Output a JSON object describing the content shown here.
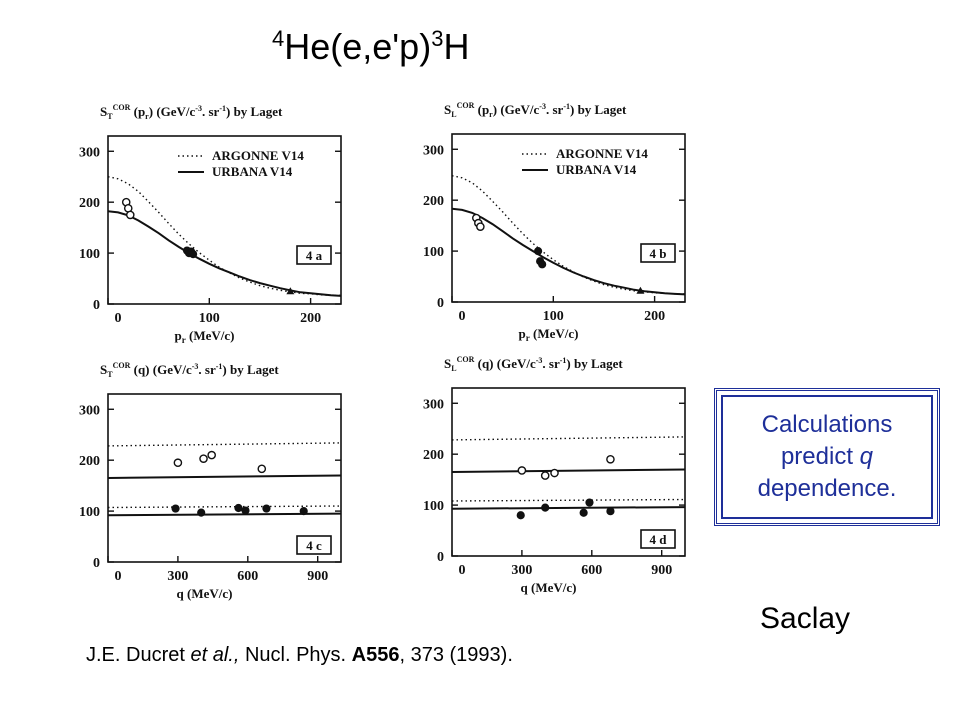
{
  "slide": {
    "title_iso_mass": "4",
    "title_reaction": "He(e,e'p)",
    "title_product_mass": "3",
    "title_product": "H",
    "note": [
      "Calculations",
      "predict ",
      "q",
      "dependence."
    ],
    "site": "Saclay",
    "reference": {
      "authors": "J.E. Ducret ",
      "etal": "et al.,",
      "journal": " Nucl. Phys. ",
      "volume": "A556",
      "rest": ", 373 (1993)."
    }
  },
  "colors": {
    "accent": "#1e2f99",
    "ink": "#111111"
  },
  "chart_data": [
    {
      "id": "4a",
      "type": "line",
      "ylabel_main": "S",
      "ylabel_sub": "T",
      "ylabel_sup": "COR",
      "ylabel_rest": " (p",
      "ylabel_var_sub": "r",
      "ylabel_tail": ") (GeV/c",
      "ylabel_exp1": "-3",
      "ylabel_mid": ". sr",
      "ylabel_exp2": "-1",
      "ylabel_end": ") by Laget",
      "xlabel": "p",
      "xlabel_sub": "r",
      "xlabel_unit": " (MeV/c)",
      "xlim": [
        0,
        230
      ],
      "ylim": [
        0,
        330
      ],
      "xticks": [
        0,
        100,
        200
      ],
      "yticks": [
        0,
        100,
        200,
        300
      ],
      "panel_tag": "4 a",
      "legend": [
        "ARGONNE V14",
        "URBANA V14"
      ],
      "series": [
        {
          "name": "ARGONNE V14",
          "style": "dotted",
          "x": [
            0,
            10,
            20,
            30,
            40,
            50,
            60,
            70,
            80,
            90,
            100,
            110,
            120,
            130,
            140,
            150,
            160,
            170,
            180,
            190,
            200,
            210,
            220,
            230
          ],
          "y": [
            250,
            246,
            236,
            221,
            201,
            180,
            158,
            137,
            118,
            101,
            86,
            72,
            61,
            51,
            43,
            36,
            31,
            27,
            24,
            21,
            20,
            18,
            17,
            17
          ]
        },
        {
          "name": "URBANA V14",
          "style": "solid",
          "x": [
            0,
            10,
            20,
            30,
            40,
            50,
            60,
            70,
            80,
            90,
            100,
            110,
            120,
            130,
            140,
            150,
            160,
            170,
            180,
            190,
            200,
            210,
            220,
            230
          ],
          "y": [
            182,
            180,
            174,
            164,
            152,
            139,
            125,
            112,
            100,
            89,
            79,
            70,
            62,
            54,
            47,
            41,
            36,
            31,
            27,
            23,
            21,
            19,
            17,
            16
          ]
        }
      ],
      "points_open": [
        [
          18,
          200
        ],
        [
          20,
          188
        ],
        [
          22,
          175
        ]
      ],
      "points_filled": [
        [
          78,
          105
        ],
        [
          80,
          100
        ],
        [
          82,
          103
        ],
        [
          84,
          98
        ]
      ],
      "points_triangle": [
        [
          180,
          25
        ]
      ]
    },
    {
      "id": "4b",
      "type": "line",
      "ylabel_main": "S",
      "ylabel_sub": "L",
      "ylabel_sup": "COR",
      "ylabel_rest": " (p",
      "ylabel_var_sub": "r",
      "ylabel_tail": ") (GeV/c",
      "ylabel_exp1": "-3",
      "ylabel_mid": ". sr",
      "ylabel_exp2": "-1",
      "ylabel_end": ") by Laget",
      "xlabel": "p",
      "xlabel_sub": "r",
      "xlabel_unit": " (MeV/c)",
      "xlim": [
        0,
        230
      ],
      "ylim": [
        0,
        330
      ],
      "xticks": [
        0,
        100,
        200
      ],
      "yticks": [
        0,
        100,
        200,
        300
      ],
      "panel_tag": "4 b",
      "legend": [
        "ARGONNE V14",
        "URBANA V14"
      ],
      "series": [
        {
          "name": "ARGONNE V14",
          "style": "dotted",
          "x": [
            0,
            10,
            20,
            30,
            40,
            50,
            60,
            70,
            80,
            90,
            100,
            110,
            120,
            130,
            140,
            150,
            160,
            170,
            180,
            190,
            200,
            210,
            220,
            230
          ],
          "y": [
            248,
            244,
            234,
            218,
            198,
            177,
            155,
            134,
            115,
            98,
            83,
            70,
            59,
            49,
            41,
            34,
            29,
            25,
            22,
            20,
            18,
            17,
            16,
            16
          ]
        },
        {
          "name": "URBANA V14",
          "style": "solid",
          "x": [
            0,
            10,
            20,
            30,
            40,
            50,
            60,
            70,
            80,
            90,
            100,
            110,
            120,
            130,
            140,
            150,
            160,
            170,
            180,
            190,
            200,
            210,
            220,
            230
          ],
          "y": [
            183,
            181,
            175,
            165,
            153,
            139,
            125,
            112,
            100,
            88,
            77,
            67,
            58,
            50,
            43,
            37,
            32,
            28,
            24,
            21,
            19,
            17,
            16,
            15
          ]
        }
      ],
      "points_open": [
        [
          24,
          165
        ],
        [
          26,
          155
        ],
        [
          28,
          148
        ]
      ],
      "points_filled": [
        [
          85,
          100
        ],
        [
          87,
          80
        ],
        [
          89,
          74
        ]
      ],
      "points_triangle": [
        [
          186,
          22
        ]
      ]
    },
    {
      "id": "4c",
      "type": "scatter",
      "ylabel_main": "S",
      "ylabel_sub": "T",
      "ylabel_sup": "COR",
      "ylabel_rest": " (q) (GeV/c",
      "ylabel_var_sub": "",
      "ylabel_tail": "",
      "ylabel_exp1": "-3",
      "ylabel_mid": ". sr",
      "ylabel_exp2": "-1",
      "ylabel_end": ") by Laget",
      "xlabel": "q",
      "xlabel_sub": "",
      "xlabel_unit": " (MeV/c)",
      "xlim": [
        0,
        1000
      ],
      "ylim": [
        0,
        330
      ],
      "xticks": [
        0,
        300,
        600,
        900
      ],
      "yticks": [
        0,
        100,
        200,
        300
      ],
      "panel_tag": "4 c",
      "legend": [],
      "series": [
        {
          "name": "ARGONNE V14",
          "style": "dotted",
          "x": [
            0,
            1000
          ],
          "y": [
            228,
            234
          ]
        },
        {
          "name": "ARGONNE V14",
          "style": "dotted",
          "x": [
            0,
            1000
          ],
          "y": [
            107,
            110
          ]
        },
        {
          "name": "URBANA V14",
          "style": "solid",
          "x": [
            0,
            1000
          ],
          "y": [
            165,
            170
          ]
        },
        {
          "name": "URBANA V14",
          "style": "solid",
          "x": [
            0,
            1000
          ],
          "y": [
            92,
            95
          ]
        }
      ],
      "points_open": [
        [
          300,
          195
        ],
        [
          410,
          203
        ],
        [
          445,
          210
        ],
        [
          660,
          183
        ]
      ],
      "points_filled": [
        [
          290,
          105
        ],
        [
          400,
          97
        ],
        [
          560,
          106
        ],
        [
          590,
          101
        ],
        [
          680,
          105
        ],
        [
          840,
          100
        ]
      ],
      "points_triangle": []
    },
    {
      "id": "4d",
      "type": "scatter",
      "ylabel_main": "S",
      "ylabel_sub": "L",
      "ylabel_sup": "COR",
      "ylabel_rest": " (q) (GeV/c",
      "ylabel_var_sub": "",
      "ylabel_tail": "",
      "ylabel_exp1": "-3",
      "ylabel_mid": ". sr",
      "ylabel_exp2": "-1",
      "ylabel_end": ") by Laget",
      "xlabel": "q",
      "xlabel_sub": "",
      "xlabel_unit": " (MeV/c)",
      "xlim": [
        0,
        1000
      ],
      "ylim": [
        0,
        330
      ],
      "xticks": [
        0,
        300,
        600,
        900
      ],
      "yticks": [
        0,
        100,
        200,
        300
      ],
      "panel_tag": "4 d",
      "legend": [],
      "series": [
        {
          "name": "ARGONNE V14",
          "style": "dotted",
          "x": [
            0,
            1000
          ],
          "y": [
            228,
            234
          ]
        },
        {
          "name": "ARGONNE V14",
          "style": "dotted",
          "x": [
            0,
            1000
          ],
          "y": [
            108,
            111
          ]
        },
        {
          "name": "URBANA V14",
          "style": "solid",
          "x": [
            0,
            1000
          ],
          "y": [
            165,
            170
          ]
        },
        {
          "name": "URBANA V14",
          "style": "solid",
          "x": [
            0,
            1000
          ],
          "y": [
            93,
            96
          ]
        }
      ],
      "points_open": [
        [
          300,
          168
        ],
        [
          400,
          158
        ],
        [
          440,
          163
        ],
        [
          680,
          190
        ]
      ],
      "points_filled": [
        [
          295,
          80
        ],
        [
          400,
          95
        ],
        [
          565,
          85
        ],
        [
          590,
          105
        ],
        [
          680,
          88
        ]
      ],
      "points_triangle": []
    }
  ]
}
